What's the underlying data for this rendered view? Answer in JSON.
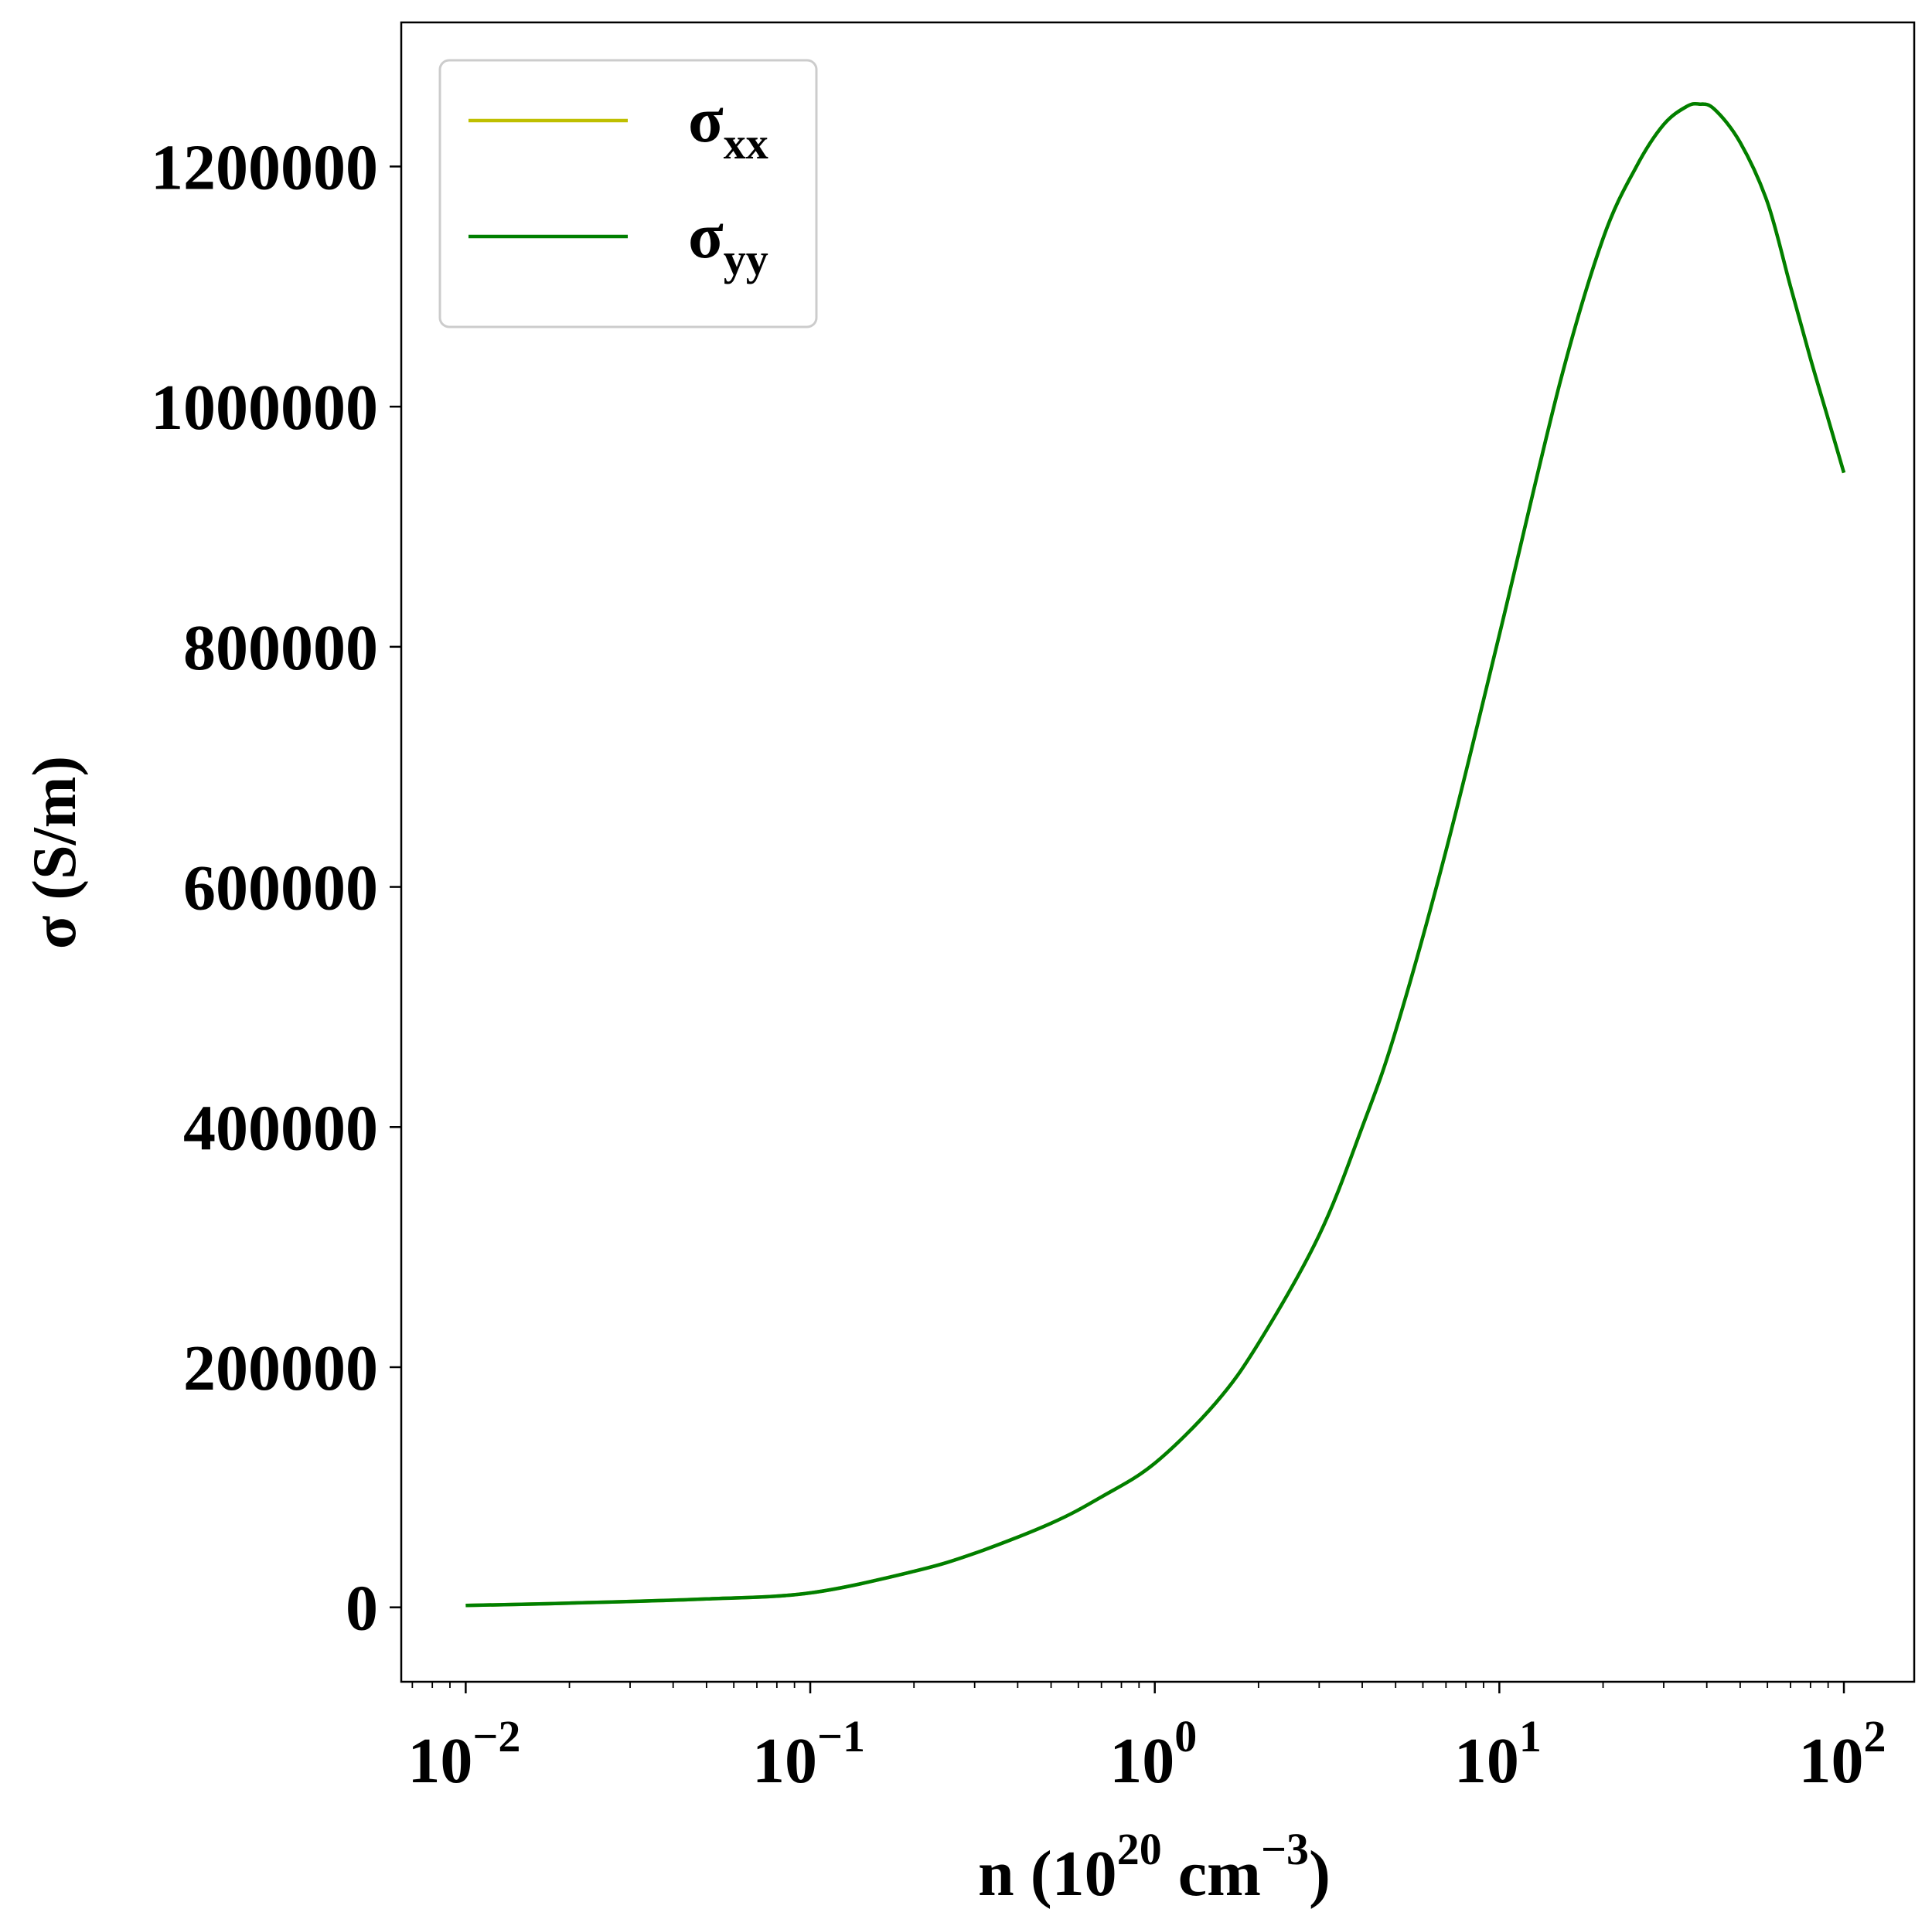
{
  "chart_data": {
    "type": "line",
    "xlabel": "n (10",
    "xlabel_exp": "20",
    "xlabel_mid": " cm",
    "xlabel_exp2": "−3",
    "xlabel_end": ")",
    "ylabel": "σ (S/m)",
    "x_scale": "log",
    "xlim": [
      0.0065,
      160
    ],
    "ylim": [
      -62000,
      1320000
    ],
    "grid": false,
    "legend_position": "top-left",
    "x_ticks": [
      {
        "value": 0.01,
        "base": "10",
        "exp": "−2"
      },
      {
        "value": 0.1,
        "base": "10",
        "exp": "−1"
      },
      {
        "value": 1,
        "base": "10",
        "exp": "0"
      },
      {
        "value": 10,
        "base": "10",
        "exp": "1"
      },
      {
        "value": 100,
        "base": "10",
        "exp": "2"
      }
    ],
    "y_ticks": [
      {
        "value": 0,
        "label": "0"
      },
      {
        "value": 200000,
        "label": "200000"
      },
      {
        "value": 400000,
        "label": "400000"
      },
      {
        "value": 600000,
        "label": "600000"
      },
      {
        "value": 800000,
        "label": "800000"
      },
      {
        "value": 1000000,
        "label": "1000000"
      },
      {
        "value": 1200000,
        "label": "1200000"
      }
    ],
    "series": [
      {
        "name": "σ",
        "name_sub": "xx",
        "color": "#bfbf00",
        "x": [
          0.01,
          0.02,
          0.05,
          0.1,
          0.2,
          0.3,
          0.5,
          0.7,
          1,
          1.5,
          2,
          3,
          4,
          5,
          7,
          10,
          15,
          20,
          25,
          30,
          35,
          38,
          42,
          50,
          60,
          70,
          80,
          90,
          100
        ],
        "y": [
          1500,
          3500,
          7000,
          12000,
          30000,
          45000,
          70000,
          92000,
          120000,
          170000,
          220000,
          310000,
          400000,
          480000,
          630000,
          810000,
          1020000,
          1140000,
          1200000,
          1235000,
          1250000,
          1252000,
          1248000,
          1220000,
          1170000,
          1100000,
          1040000,
          990000,
          945000
        ]
      },
      {
        "name": "σ",
        "name_sub": "yy",
        "color": "#007f00",
        "x": [
          0.01,
          0.02,
          0.05,
          0.1,
          0.2,
          0.3,
          0.5,
          0.7,
          1,
          1.5,
          2,
          3,
          4,
          5,
          7,
          10,
          15,
          20,
          25,
          30,
          35,
          38,
          42,
          50,
          60,
          70,
          80,
          90,
          100
        ],
        "y": [
          1500,
          3500,
          7000,
          12000,
          30000,
          45000,
          70000,
          92000,
          120000,
          170000,
          220000,
          310000,
          400000,
          480000,
          630000,
          810000,
          1020000,
          1140000,
          1200000,
          1235000,
          1250000,
          1252000,
          1248000,
          1220000,
          1170000,
          1100000,
          1040000,
          990000,
          945000
        ]
      }
    ]
  }
}
